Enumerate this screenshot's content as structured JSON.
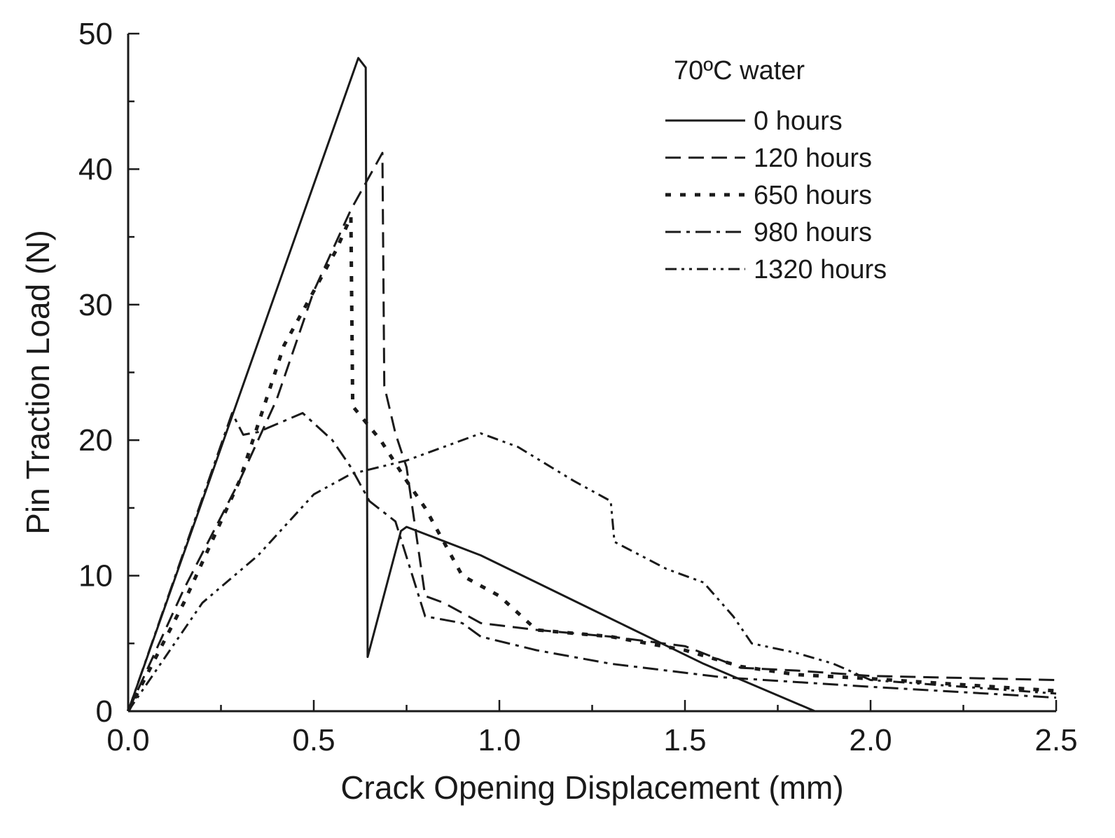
{
  "chart_data": {
    "type": "line",
    "title": "",
    "xlabel": "Crack Opening Displacement (mm)",
    "ylabel": "Pin Traction Load (N)",
    "xlim": [
      0,
      2.5
    ],
    "ylim": [
      0,
      50
    ],
    "xticks": [
      0.0,
      0.5,
      1.0,
      1.5,
      2.0,
      2.5
    ],
    "xtick_labels": [
      "0.0",
      "0.5",
      "1.0",
      "1.5",
      "2.0",
      "2.5"
    ],
    "yticks": [
      0,
      10,
      20,
      30,
      40,
      50
    ],
    "ytick_labels": [
      "0",
      "10",
      "20",
      "30",
      "40",
      "50"
    ],
    "legend_title": "70ºC water",
    "legend_position": "top-right",
    "series": [
      {
        "name": "0 hours",
        "style": "solid",
        "points": [
          [
            0,
            0
          ],
          [
            0.62,
            48.2
          ],
          [
            0.64,
            47.5
          ],
          [
            0.645,
            4.0
          ],
          [
            0.735,
            13.3
          ],
          [
            0.75,
            13.6
          ],
          [
            0.95,
            11.5
          ],
          [
            1.25,
            7.5
          ],
          [
            1.55,
            3.5
          ],
          [
            1.85,
            0
          ]
        ]
      },
      {
        "name": "120 hours",
        "style": "dashed",
        "points": [
          [
            0,
            0
          ],
          [
            0.15,
            9
          ],
          [
            0.3,
            17
          ],
          [
            0.4,
            23
          ],
          [
            0.5,
            31
          ],
          [
            0.6,
            37
          ],
          [
            0.685,
            41.2
          ],
          [
            0.69,
            24
          ],
          [
            0.72,
            20.5
          ],
          [
            0.75,
            18
          ],
          [
            0.8,
            8.5
          ],
          [
            0.85,
            8.0
          ],
          [
            0.95,
            6.5
          ],
          [
            1.1,
            6.0
          ],
          [
            1.3,
            5.5
          ],
          [
            1.5,
            4.8
          ],
          [
            1.65,
            3.2
          ],
          [
            1.8,
            3.0
          ],
          [
            2.0,
            2.6
          ],
          [
            2.5,
            2.3
          ]
        ]
      },
      {
        "name": "650 hours",
        "style": "dotted",
        "points": [
          [
            0,
            0
          ],
          [
            0.15,
            8
          ],
          [
            0.3,
            17
          ],
          [
            0.42,
            27
          ],
          [
            0.5,
            31
          ],
          [
            0.56,
            34
          ],
          [
            0.6,
            36.5
          ],
          [
            0.605,
            22.5
          ],
          [
            0.68,
            20
          ],
          [
            0.75,
            17
          ],
          [
            0.8,
            15
          ],
          [
            0.9,
            10
          ],
          [
            1.0,
            8.5
          ],
          [
            1.1,
            6.0
          ],
          [
            1.3,
            5.5
          ],
          [
            1.5,
            4.5
          ],
          [
            1.65,
            3.3
          ],
          [
            1.8,
            2.7
          ],
          [
            2.0,
            2.4
          ],
          [
            2.5,
            1.5
          ]
        ]
      },
      {
        "name": "980 hours",
        "style": "dashdot",
        "points": [
          [
            0,
            0
          ],
          [
            0.28,
            22
          ],
          [
            0.31,
            20.4
          ],
          [
            0.35,
            20.6
          ],
          [
            0.47,
            22
          ],
          [
            0.55,
            20
          ],
          [
            0.6,
            18
          ],
          [
            0.65,
            15.5
          ],
          [
            0.72,
            14
          ],
          [
            0.8,
            7
          ],
          [
            0.9,
            6.5
          ],
          [
            0.95,
            5.5
          ],
          [
            1.1,
            4.5
          ],
          [
            1.3,
            3.5
          ],
          [
            1.6,
            2.5
          ],
          [
            2.0,
            1.8
          ],
          [
            2.5,
            1.0
          ]
        ]
      },
      {
        "name": "1320 hours",
        "style": "dashdotdot",
        "points": [
          [
            0,
            0
          ],
          [
            0.2,
            8
          ],
          [
            0.35,
            11.5
          ],
          [
            0.5,
            16
          ],
          [
            0.6,
            17.5
          ],
          [
            0.75,
            18.5
          ],
          [
            0.85,
            19.5
          ],
          [
            0.95,
            20.5
          ],
          [
            1.05,
            19.5
          ],
          [
            1.2,
            17
          ],
          [
            1.3,
            15.5
          ],
          [
            1.31,
            12.5
          ],
          [
            1.45,
            10.5
          ],
          [
            1.55,
            9.5
          ],
          [
            1.63,
            7
          ],
          [
            1.68,
            5
          ],
          [
            1.8,
            4.3
          ],
          [
            1.9,
            3.5
          ],
          [
            2.0,
            2.3
          ],
          [
            2.5,
            1.3
          ]
        ]
      }
    ]
  }
}
